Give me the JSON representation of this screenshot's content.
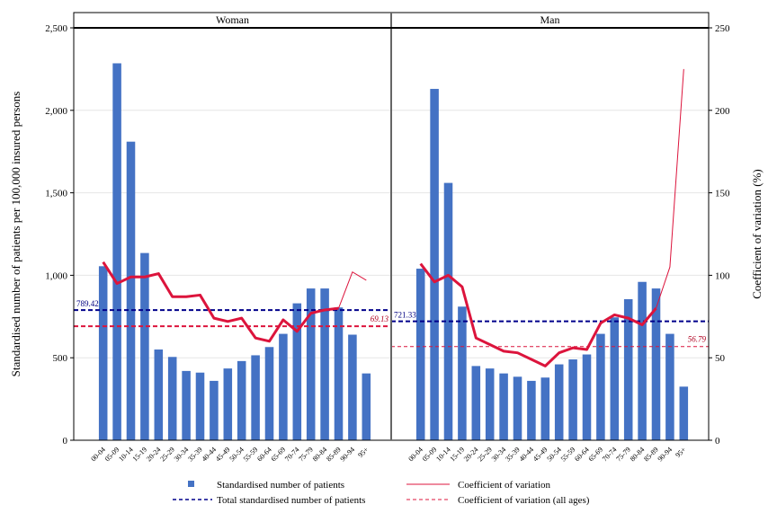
{
  "chart_data": {
    "type": "bar",
    "y_left_label": "Standardised number of patients per 100,000 insured persons",
    "y_right_label": "Coefficient of variation (%)",
    "y_left_lim": [
      0,
      2500
    ],
    "y_right_lim": [
      0,
      250
    ],
    "y_left_ticks": [
      "0",
      "500",
      "1,000",
      "1,500",
      "2,000",
      "2,500"
    ],
    "y_right_ticks": [
      "0",
      "50",
      "100",
      "150",
      "200",
      "250"
    ],
    "categories": [
      "00-04",
      "05-09",
      "10-14",
      "15-19",
      "20-24",
      "25-29",
      "30-34",
      "35-39",
      "40-44",
      "45-49",
      "50-54",
      "55-59",
      "60-64",
      "65-69",
      "70-74",
      "75-79",
      "80-84",
      "85-89",
      "90-94",
      "95+"
    ],
    "grid": "horizontal",
    "legend_position": "bottom",
    "legend": [
      {
        "label": "Standardised number of patients",
        "color": "#4472c4"
      },
      {
        "label": "Coefficient of variation",
        "color": "#dc143c"
      },
      {
        "label": "Total standardised number of patients",
        "color": "#00008b"
      },
      {
        "label": "Coefficient of variation (all ages)",
        "color": "#dc143c"
      }
    ],
    "panels": [
      {
        "title": "Woman",
        "patients": [
          1055,
          2285,
          1810,
          1135,
          550,
          505,
          420,
          410,
          360,
          435,
          480,
          515,
          565,
          645,
          830,
          920,
          920,
          805,
          640,
          405
        ],
        "cv": [
          108,
          95,
          99,
          99,
          101,
          87,
          87,
          88,
          74,
          72,
          74,
          62,
          60,
          73,
          66,
          77,
          79,
          80,
          102,
          97
        ],
        "cv_bold_count": 18,
        "total_patients": 789.42,
        "total_patients_label": "789.42",
        "cv_all_ages": 69.13,
        "cv_all_ages_label": "69.13"
      },
      {
        "title": "Man",
        "patients": [
          1040,
          2130,
          1560,
          810,
          450,
          435,
          405,
          385,
          360,
          380,
          460,
          490,
          520,
          645,
          745,
          855,
          960,
          920,
          645,
          325
        ],
        "cv": [
          107,
          96,
          100,
          93,
          62,
          58,
          54,
          53,
          49,
          45,
          53,
          56,
          55,
          71,
          76,
          74,
          70,
          80,
          105,
          225
        ],
        "cv_bold_count": 18,
        "total_patients": 721.33,
        "total_patients_label": "721.33",
        "cv_all_ages": 56.79,
        "cv_all_ages_label": "56.79"
      }
    ]
  }
}
